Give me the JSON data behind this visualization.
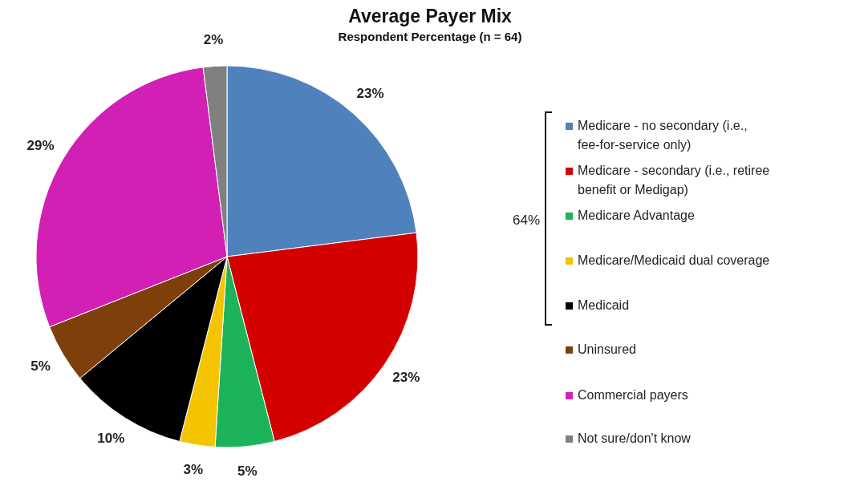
{
  "chart_data": {
    "type": "pie",
    "title": "Average Payer Mix",
    "subtitle": "Respondent Percentage (n = 64)",
    "categories": [
      "Medicare - no secondary (i.e., fee-for-service only)",
      "Medicare - secondary (i.e., retiree benefit or Medigap)",
      "Medicare Advantage",
      "Medicare/Medicaid dual coverage",
      "Medicaid",
      "Uninsured",
      "Commercial payers",
      "Not sure/don't know"
    ],
    "values": [
      23,
      23,
      5,
      3,
      10,
      5,
      29,
      2
    ],
    "colors": [
      "#4f81bd",
      "#d40000",
      "#1db35a",
      "#f5c400",
      "#000000",
      "#7f3f0a",
      "#d21fb4",
      "#808080"
    ],
    "value_labels": [
      "23%",
      "23%",
      "5%",
      "3%",
      "10%",
      "5%",
      "29%",
      "2%"
    ],
    "legend": "right",
    "annotations": [
      "64%"
    ]
  }
}
